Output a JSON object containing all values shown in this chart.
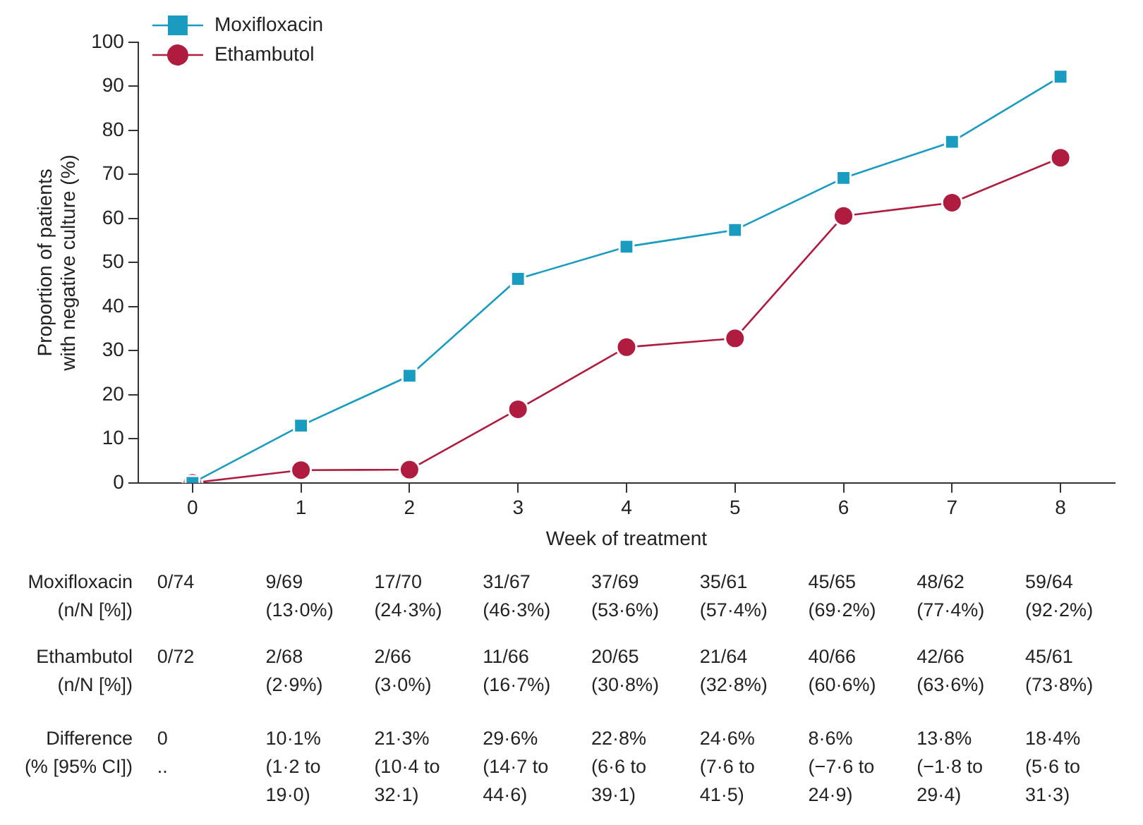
{
  "chart_data": {
    "type": "line",
    "xlabel": "Week of treatment",
    "ylabel": "Proportion of patients with negative culture (%)",
    "x": [
      0,
      1,
      2,
      3,
      4,
      5,
      6,
      7,
      8
    ],
    "xlim": [
      -0.5,
      8.5
    ],
    "xticks": [
      0,
      1,
      2,
      3,
      4,
      5,
      6,
      7,
      8
    ],
    "ylim": [
      0,
      100
    ],
    "yticks": [
      0,
      10,
      20,
      30,
      40,
      50,
      60,
      70,
      80,
      90,
      100
    ],
    "grid": false,
    "legend": "top left",
    "series": [
      {
        "name": "Moxifloxacin",
        "color": "#1a9cc0",
        "marker": "square",
        "values": [
          0,
          13.0,
          24.3,
          46.3,
          53.6,
          57.4,
          69.2,
          77.4,
          92.2
        ]
      },
      {
        "name": "Ethambutol",
        "color": "#b01c40",
        "marker": "circle",
        "values": [
          0,
          2.9,
          3.0,
          16.7,
          30.8,
          32.8,
          60.6,
          63.6,
          73.8
        ]
      }
    ],
    "annotations": [
      "Moxifloxacin\n(n/N [%])",
      "Ethambutol\n(n/N [%])",
      "Difference\n(% [95% CI])",
      "0/74",
      "9/69\n(13·0%)",
      "17/70\n(24·3%)",
      "31/67\n(46·3%)",
      "37/69\n(53·6%)",
      "35/61\n(57·4%)",
      "45/65\n(69·2%)",
      "48/62\n(77·4%)",
      "59/64\n(92·2%)",
      "0/72",
      "2/68\n(2·9%)",
      "2/66\n(3·0%)",
      "11/66\n(16·7%)",
      "20/65\n(30·8%)",
      "21/64\n(32·8%)",
      "40/66\n(60·6%)",
      "42/66\n(63·6%)",
      "45/61\n(73·8%)",
      "0\n..",
      "10·1%\n(1·2 to\n19·0)",
      "21·3%\n(10·4 to\n32·1)",
      "29·6%\n(14·7 to\n44·6)",
      "22·8%\n(6·6 to\n39·1)",
      "24·6%\n(7·6 to\n41·5)",
      "8·6%\n(−7·6 to\n24·9)",
      "13·8%\n(−1·8 to\n29·4)",
      "18·4%\n(5·6 to\n31·3)"
    ]
  }
}
